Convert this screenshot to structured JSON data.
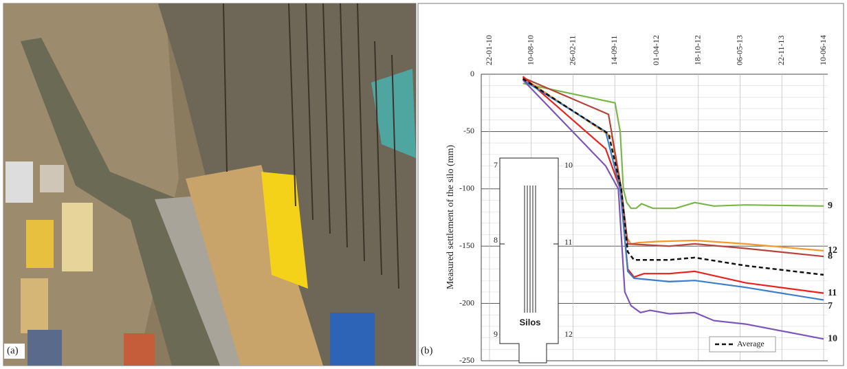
{
  "photo_label": "(a)",
  "panel_label": "(b)",
  "inset": {
    "labels": [
      "7",
      "10",
      "8",
      "11",
      "9",
      "12"
    ],
    "title": "Silos"
  },
  "chart_data": {
    "type": "line",
    "y_label": "Measured settlement of the silo  (mm)",
    "xlim": [
      "2010-01-22",
      "2014-06-10"
    ],
    "xticks": [
      {
        "value": "2010-01-22",
        "label": "22-01-10"
      },
      {
        "value": "2010-08-10",
        "label": "10-08-10"
      },
      {
        "value": "2011-02-26",
        "label": "26-02-11"
      },
      {
        "value": "2011-09-14",
        "label": "14-09-11"
      },
      {
        "value": "2012-04-01",
        "label": "01-04-12"
      },
      {
        "value": "2012-10-18",
        "label": "18-10-12"
      },
      {
        "value": "2013-05-06",
        "label": "06-05-13"
      },
      {
        "value": "2013-11-22",
        "label": "22-11-13"
      },
      {
        "value": "2014-06-10",
        "label": "10-06-14"
      }
    ],
    "ylim": [
      -250,
      0
    ],
    "yticks": [
      0,
      -50,
      -100,
      -150,
      -200,
      -250
    ],
    "grid": true,
    "series": [
      {
        "name": "9",
        "color": "#7ab648",
        "x": [
          "2010-07-01",
          "2011-09-15",
          "2011-10-10",
          "2011-10-25",
          "2011-11-10",
          "2011-12-01",
          "2011-12-25",
          "2012-01-20",
          "2012-03-15",
          "2012-07-01",
          "2012-10-01",
          "2013-01-01",
          "2013-06-01",
          "2014-06-10"
        ],
        "values": [
          -8,
          -25,
          -50,
          -100,
          -112,
          -117,
          -117,
          -113,
          -117,
          -117,
          -112,
          -115,
          -114,
          -115
        ]
      },
      {
        "name": "12",
        "color": "#f39a2b",
        "x": [
          "2010-07-01",
          "2011-09-01",
          "2011-10-10",
          "2011-11-01",
          "2011-12-01",
          "2012-01-01",
          "2012-04-01",
          "2012-10-01",
          "2013-06-01",
          "2014-06-10"
        ],
        "values": [
          -3,
          -55,
          -100,
          -140,
          -148,
          -147,
          -146,
          -145,
          -148,
          -154
        ]
      },
      {
        "name": "8",
        "color": "#b5443b",
        "x": [
          "2010-07-01",
          "2011-08-15",
          "2011-10-15",
          "2011-11-15",
          "2012-06-01",
          "2012-10-01",
          "2013-06-01",
          "2014-06-10"
        ],
        "values": [
          -3,
          -35,
          -100,
          -148,
          -150,
          -148,
          -152,
          -159
        ]
      },
      {
        "name": "11",
        "color": "#e8231f",
        "x": [
          "2010-07-01",
          "2011-08-01",
          "2011-10-10",
          "2011-11-15",
          "2011-12-15",
          "2012-02-01",
          "2012-06-01",
          "2012-10-01",
          "2013-06-01",
          "2014-06-10"
        ],
        "values": [
          -2,
          -65,
          -100,
          -170,
          -177,
          -174,
          -174,
          -172,
          -182,
          -191
        ]
      },
      {
        "name": "7",
        "color": "#3d7cc9",
        "x": [
          "2010-07-01",
          "2011-08-01",
          "2011-10-10",
          "2011-11-15",
          "2011-12-15",
          "2012-06-01",
          "2012-10-01",
          "2013-06-01",
          "2014-06-10"
        ],
        "values": [
          -5,
          -50,
          -100,
          -172,
          -178,
          -181,
          -180,
          -186,
          -197
        ]
      },
      {
        "name": "10",
        "color": "#7d55b8",
        "x": [
          "2010-07-01",
          "2011-08-01",
          "2011-10-01",
          "2011-11-01",
          "2011-12-01",
          "2012-01-15",
          "2012-03-01",
          "2012-06-01",
          "2012-10-01",
          "2013-01-01",
          "2013-06-01",
          "2014-06-10"
        ],
        "values": [
          -5,
          -80,
          -100,
          -190,
          -202,
          -208,
          -206,
          -209,
          -208,
          -215,
          -218,
          -231
        ]
      }
    ],
    "average": {
      "name": "Average",
      "color": "#111111",
      "x": [
        "2010-07-01",
        "2011-08-15",
        "2011-10-15",
        "2011-11-15",
        "2011-12-15",
        "2012-06-01",
        "2012-10-01",
        "2013-06-01",
        "2014-06-10"
      ],
      "values": [
        -4,
        -52,
        -100,
        -155,
        -162,
        -162,
        -160,
        -167,
        -175
      ]
    }
  }
}
